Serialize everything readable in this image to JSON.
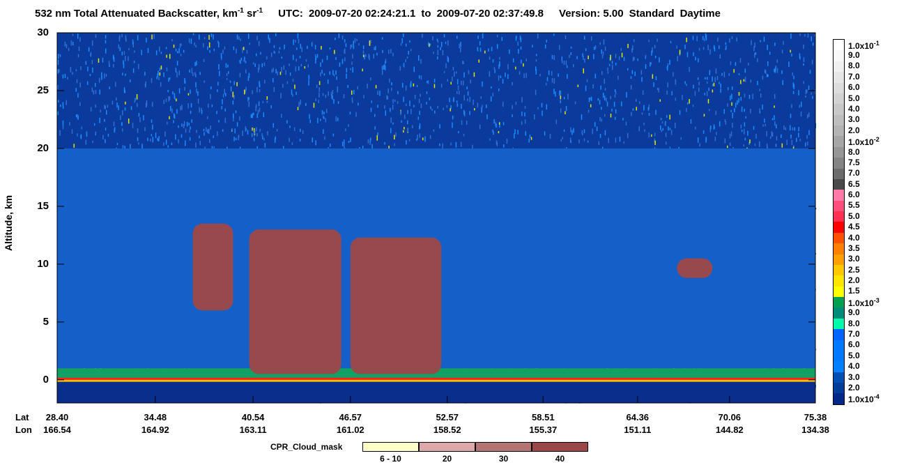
{
  "header": {
    "title_main": "532 nm Total Attenuated Backscatter, km",
    "title_exp1": "-1",
    "title_mid": " sr",
    "title_exp2": "-1",
    "utc_label": "UTC:",
    "utc_start": "2009-07-20 02:24:21.1",
    "utc_to": "to",
    "utc_end": "2009-07-20 02:37:49.8",
    "version_label": "Version: 5.00",
    "mode": "Standard",
    "daytime": "Daytime"
  },
  "chart_data": {
    "type": "heatmap",
    "ylabel": "Altitude, km",
    "ylim": [
      -2,
      30
    ],
    "yticks": [
      "0",
      "5",
      "10",
      "15",
      "20",
      "25",
      "30"
    ],
    "x_row_labels": [
      "Lat",
      "Lon"
    ],
    "lat_ticks": [
      "28.40",
      "34.48",
      "40.54",
      "46.57",
      "52.57",
      "58.51",
      "64.36",
      "70.06",
      "75.38"
    ],
    "lon_ticks": [
      "166.54",
      "164.92",
      "163.11",
      "161.02",
      "158.52",
      "155.37",
      "151.11",
      "144.82",
      "134.38"
    ],
    "colorbar": {
      "labels": [
        "1.0x10",
        "9.0",
        "8.0",
        "7.0",
        "6.0",
        "5.0",
        "4.0",
        "3.0",
        "2.0",
        "1.0x10",
        "8.0",
        "7.5",
        "7.0",
        "6.5",
        "6.0",
        "5.5",
        "5.0",
        "4.5",
        "4.0",
        "3.5",
        "3.0",
        "2.5",
        "2.0",
        "1.5",
        "1.0x10",
        "9.0",
        "8.0",
        "7.0",
        "6.0",
        "5.0",
        "4.0",
        "3.0",
        "2.0",
        "1.0x10"
      ],
      "exponents": [
        "-1",
        "",
        "",
        "",
        "",
        "",
        "",
        "",
        "",
        "-2",
        "",
        "",
        "",
        "",
        "",
        "",
        "",
        "",
        "",
        "",
        "",
        "",
        "",
        "",
        "-3",
        "",
        "",
        "",
        "",
        "",
        "",
        "",
        "",
        "-4"
      ],
      "colors": [
        "#ffffff",
        "#f8f8f8",
        "#f0f0f0",
        "#e6e6e6",
        "#dcdcdc",
        "#d2d2d2",
        "#c8c8c8",
        "#bebebe",
        "#b4b4b4",
        "#a6a6a6",
        "#969696",
        "#848484",
        "#6c6c6c",
        "#4a4a4a",
        "#ff7aa8",
        "#ff4f7a",
        "#ff3050",
        "#ff0000",
        "#ff5000",
        "#ff8000",
        "#ffa000",
        "#ffc800",
        "#ffe600",
        "#ffff00",
        "#00a050",
        "#008c78",
        "#00faaa",
        "#0064ff",
        "#0078ff",
        "#0078ff",
        "#0080ff",
        "#0050b4",
        "#003c9a",
        "#002888"
      ]
    },
    "clouds": [
      {
        "x0": 46.57,
        "x1": 52.2,
        "y0": 0.5,
        "y1": 12.3
      },
      {
        "x0": 40.3,
        "x1": 46.0,
        "y0": 0.5,
        "y1": 13.0
      },
      {
        "x0": 36.8,
        "x1": 39.3,
        "y0": 6.0,
        "y1": 13.5
      },
      {
        "x0": 66.8,
        "x1": 69.0,
        "y0": 8.8,
        "y1": 10.5
      }
    ]
  },
  "mask_legend": {
    "title": "CPR_Cloud_mask",
    "items": [
      {
        "label": "6 - 10",
        "color": "#ffffc8"
      },
      {
        "label": "20",
        "color": "#dca8a8"
      },
      {
        "label": "30",
        "color": "#b47474"
      },
      {
        "label": "40",
        "color": "#9c4848"
      }
    ]
  }
}
